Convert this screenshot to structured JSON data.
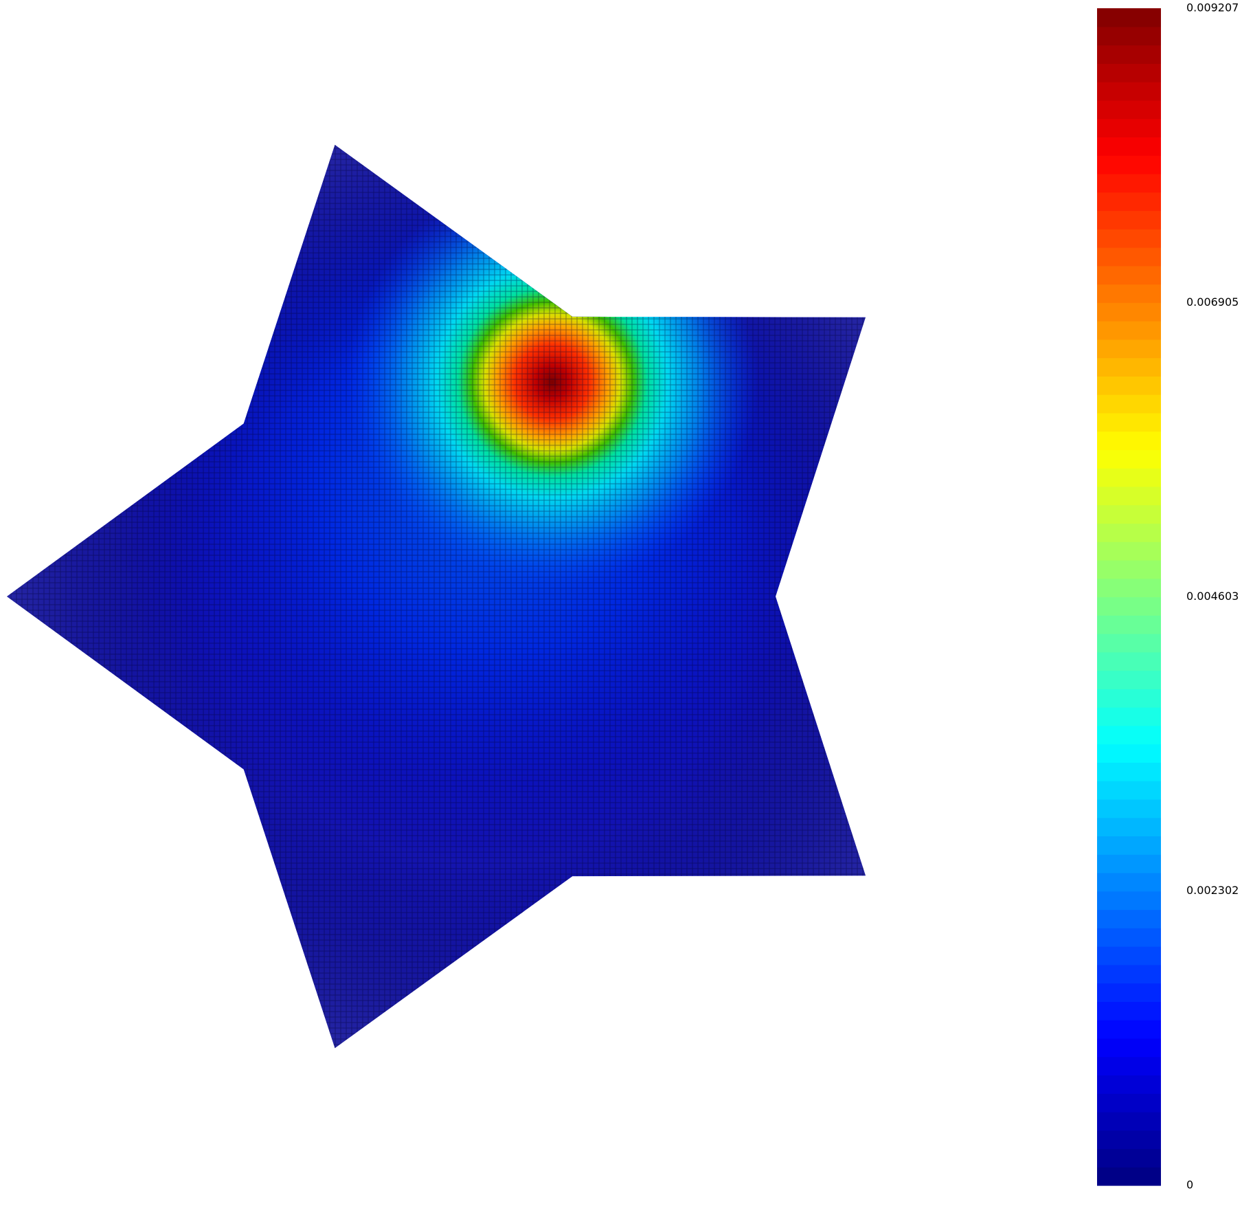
{
  "chart_data": {
    "type": "heatmap",
    "colormap": "jet",
    "zlim": [
      0,
      0.009207
    ],
    "zticks": [
      0,
      0.002302,
      0.004603,
      0.006905,
      0.009207
    ]
  }
}
